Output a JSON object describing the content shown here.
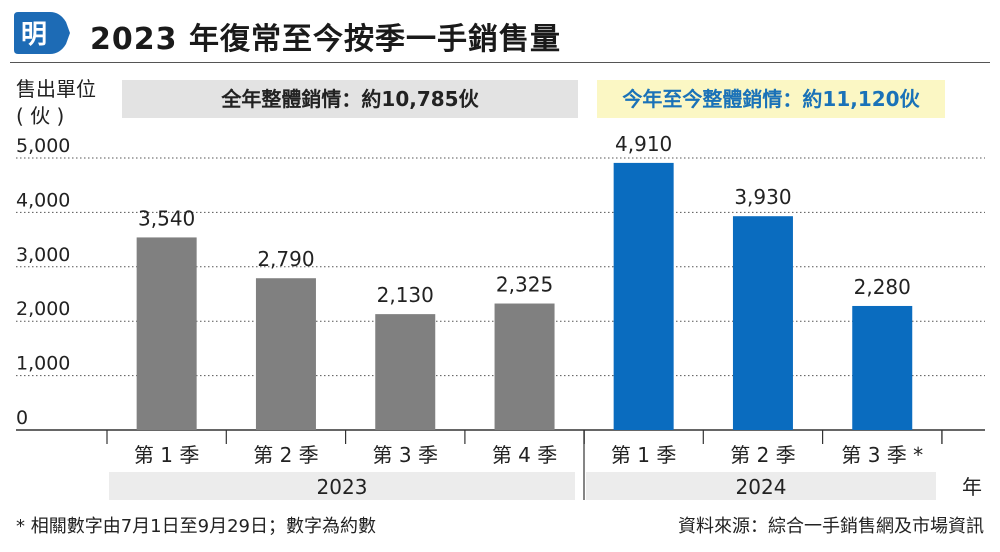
{
  "logo_text": "明",
  "title": "2023 年復常至今按季一手銷售量",
  "y_unit_line1": "售出單位",
  "y_unit_line2": "( 伙 )",
  "banner_2023": "全年整體銷情：約10,785伙",
  "banner_2024": "今年至今整體銷情：約11,120伙",
  "x_unit": "年",
  "footnote": "* 相關數字由7月1日至9月29日；數字為約數",
  "source": "資料來源：綜合一手銷售網及市場資訊",
  "colors": {
    "gray_bar": "#808080",
    "blue_bar": "#0a6cbf",
    "banner_2024_text": "#1a72b8"
  },
  "chart_data": {
    "type": "bar",
    "ylim": [
      0,
      5000
    ],
    "yticks": [
      "0",
      "1,000",
      "2,000",
      "3,000",
      "4,000",
      "5,000"
    ],
    "grid": true,
    "groups": [
      {
        "year": "2023",
        "categories": [
          "第 1 季",
          "第 2 季",
          "第 3 季",
          "第 4 季"
        ],
        "values": [
          3540,
          2790,
          2130,
          2325
        ],
        "labels": [
          "3,540",
          "2,790",
          "2,130",
          "2,325"
        ]
      },
      {
        "year": "2024",
        "categories": [
          "第 1 季",
          "第 2 季",
          "第 3 季 *"
        ],
        "values": [
          4910,
          3930,
          2280
        ],
        "labels": [
          "4,910",
          "3,930",
          "2,280"
        ]
      }
    ]
  }
}
